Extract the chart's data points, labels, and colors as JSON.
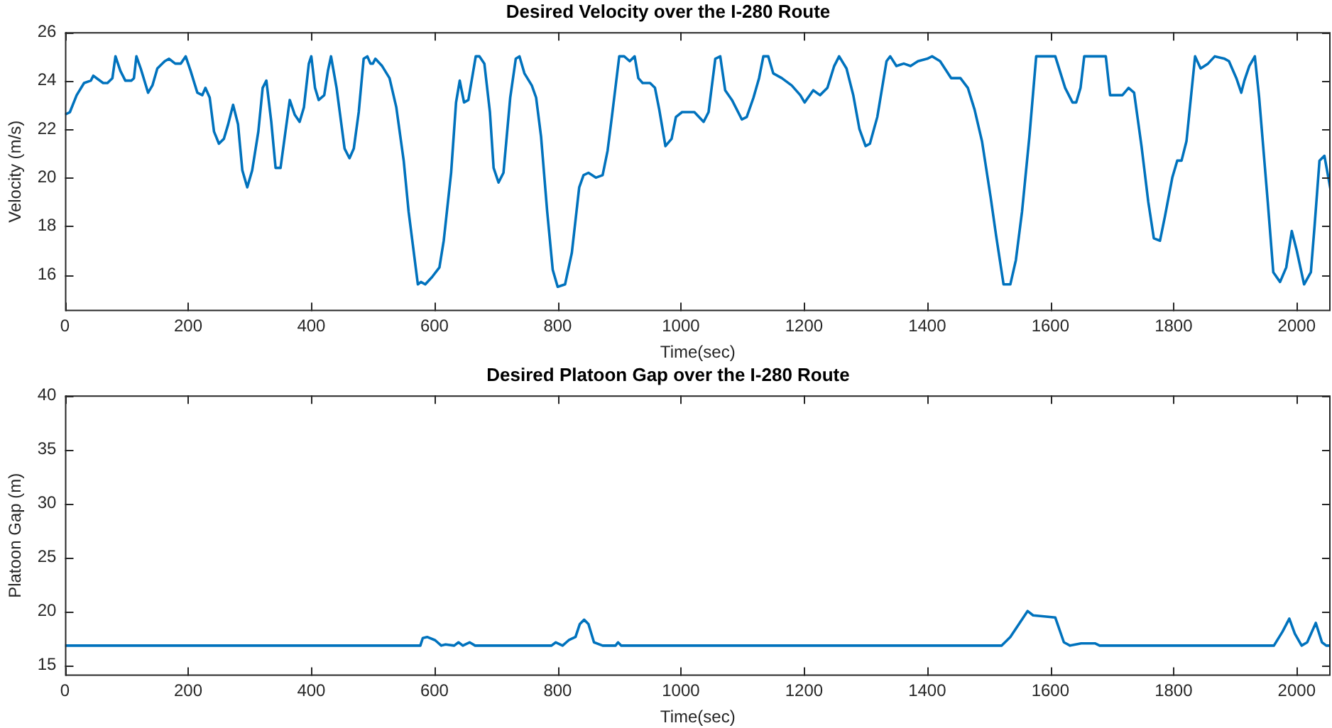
{
  "chart_data": [
    {
      "type": "line",
      "title": "Desired Velocity over the I-280 Route",
      "xlabel": "Time(sec)",
      "ylabel": "Velocity (m/s)",
      "x": [
        0,
        8,
        19,
        31,
        42,
        46,
        62,
        69,
        77,
        82,
        90,
        98,
        108,
        112,
        116,
        123,
        135,
        142,
        150,
        162,
        169,
        179,
        188,
        196,
        204,
        215,
        223,
        228,
        235,
        242,
        250,
        258,
        265,
        273,
        281,
        288,
        296,
        304,
        314,
        321,
        327,
        335,
        342,
        350,
        358,
        365,
        373,
        381,
        388,
        396,
        400,
        406,
        412,
        421,
        427,
        432,
        441,
        454,
        462,
        469,
        477,
        485,
        491,
        496,
        500,
        504,
        515,
        527,
        538,
        550,
        558,
        573,
        578,
        585,
        596,
        608,
        615,
        627,
        635,
        641,
        648,
        655,
        667,
        673,
        681,
        690,
        696,
        704,
        712,
        723,
        732,
        738,
        746,
        758,
        765,
        773,
        783,
        792,
        800,
        812,
        823,
        835,
        842,
        850,
        862,
        873,
        881,
        888,
        900,
        908,
        917,
        925,
        931,
        938,
        950,
        958,
        965,
        975,
        985,
        992,
        1002,
        1022,
        1037,
        1045,
        1056,
        1064,
        1072,
        1083,
        1099,
        1107,
        1118,
        1127,
        1134,
        1142,
        1150,
        1164,
        1180,
        1194,
        1201,
        1215,
        1226,
        1238,
        1249,
        1257,
        1269,
        1280,
        1290,
        1300,
        1307,
        1319,
        1334,
        1340,
        1350,
        1362,
        1373,
        1385,
        1400,
        1408,
        1421,
        1439,
        1454,
        1466,
        1477,
        1489,
        1503,
        1512,
        1524,
        1535,
        1544,
        1554,
        1566,
        1577,
        1608,
        1624,
        1636,
        1642,
        1649,
        1655,
        1686,
        1690,
        1697,
        1717,
        1727,
        1736,
        1748,
        1759,
        1768,
        1778,
        1786,
        1798,
        1806,
        1813,
        1821,
        1829,
        1835,
        1844,
        1856,
        1867,
        1883,
        1890,
        1902,
        1910,
        1915,
        1923,
        1932,
        1939,
        1953,
        1962,
        1973,
        1983,
        1992,
        2000,
        2012,
        2023,
        2029,
        2037,
        2045,
        2055
      ],
      "series": [
        {
          "color": "#0072bd",
          "values": [
            22.6,
            22.7,
            23.4,
            23.9,
            24.0,
            24.2,
            23.9,
            23.9,
            24.1,
            25.0,
            24.4,
            24.0,
            24.0,
            24.1,
            25.0,
            24.5,
            23.5,
            23.8,
            24.5,
            24.8,
            24.9,
            24.7,
            24.7,
            25.0,
            24.4,
            23.5,
            23.4,
            23.7,
            23.3,
            21.9,
            21.4,
            21.6,
            22.2,
            23.0,
            22.2,
            20.3,
            19.6,
            20.3,
            21.9,
            23.7,
            24.0,
            22.3,
            20.4,
            20.4,
            21.9,
            23.2,
            22.6,
            22.3,
            22.9,
            24.7,
            25.0,
            23.7,
            23.2,
            23.4,
            24.4,
            25.0,
            23.7,
            21.2,
            20.8,
            21.2,
            22.7,
            24.9,
            25.0,
            24.7,
            24.7,
            24.9,
            24.6,
            24.1,
            22.9,
            20.7,
            18.6,
            15.6,
            15.7,
            15.6,
            15.9,
            16.3,
            17.4,
            20.2,
            23.1,
            24.0,
            23.1,
            23.2,
            25.0,
            25.0,
            24.7,
            22.7,
            20.4,
            19.8,
            20.2,
            23.3,
            24.9,
            25.0,
            24.3,
            23.8,
            23.3,
            21.7,
            18.6,
            16.2,
            15.5,
            15.6,
            16.9,
            19.6,
            20.1,
            20.2,
            20.0,
            20.1,
            21.1,
            22.5,
            25.0,
            25.0,
            24.8,
            25.0,
            24.1,
            23.9,
            23.9,
            23.7,
            22.8,
            21.3,
            21.6,
            22.5,
            22.7,
            22.7,
            22.3,
            22.7,
            24.9,
            25.0,
            23.6,
            23.2,
            22.4,
            22.5,
            23.3,
            24.1,
            25.0,
            25.0,
            24.3,
            24.1,
            23.8,
            23.4,
            23.1,
            23.6,
            23.4,
            23.7,
            24.6,
            25.0,
            24.5,
            23.4,
            22.0,
            21.3,
            21.4,
            22.5,
            24.8,
            25.0,
            24.6,
            24.7,
            24.6,
            24.8,
            24.9,
            25.0,
            24.8,
            24.1,
            24.1,
            23.7,
            22.8,
            21.5,
            19.2,
            17.6,
            15.6,
            15.6,
            16.6,
            18.6,
            21.7,
            25.0,
            25.0,
            23.7,
            23.1,
            23.1,
            23.7,
            25.0,
            25.0,
            25.0,
            23.4,
            23.4,
            23.7,
            23.5,
            21.3,
            19.0,
            17.5,
            17.4,
            18.4,
            20.0,
            20.7,
            20.7,
            21.5,
            23.5,
            25.0,
            24.5,
            24.7,
            25.0,
            24.9,
            24.8,
            24.1,
            23.5,
            24.0,
            24.6,
            25.0,
            23.3,
            19.0,
            16.1,
            15.7,
            16.3,
            17.8,
            17.0,
            15.6,
            16.1,
            18.0,
            20.7,
            20.9,
            19.5
          ]
        }
      ],
      "xlim": [
        0,
        2055
      ],
      "xticks": [
        0,
        200,
        400,
        600,
        800,
        1000,
        1200,
        1400,
        1600,
        1800,
        2000
      ],
      "ylim": [
        14.5,
        26
      ],
      "yticks": [
        16,
        18,
        20,
        22,
        24,
        26
      ]
    },
    {
      "type": "line",
      "title": "Desired Platoon Gap over the I-280 Route",
      "xlabel": "Time(sec)",
      "ylabel": "Platoon Gap (m)",
      "x": [
        0,
        577,
        581,
        588,
        601,
        611,
        618,
        632,
        639,
        646,
        657,
        666,
        790,
        797,
        808,
        818,
        829,
        836,
        843,
        850,
        859,
        873,
        894,
        898,
        903,
        1521,
        1535,
        1549,
        1563,
        1572,
        1608,
        1622,
        1632,
        1650,
        1673,
        1680,
        1963,
        1977,
        1988,
        1997,
        2008,
        2017,
        2031,
        2041,
        2048,
        2055
      ],
      "series": [
        {
          "color": "#0072bd",
          "values": [
            16.8,
            16.8,
            17.5,
            17.6,
            17.3,
            16.8,
            16.9,
            16.8,
            17.1,
            16.8,
            17.1,
            16.8,
            16.8,
            17.1,
            16.8,
            17.3,
            17.6,
            18.8,
            19.2,
            18.8,
            17.1,
            16.8,
            16.8,
            17.1,
            16.8,
            16.8,
            17.6,
            18.8,
            20.0,
            19.6,
            19.4,
            17.1,
            16.8,
            17.0,
            17.0,
            16.8,
            16.8,
            18.1,
            19.3,
            17.9,
            16.8,
            17.1,
            18.9,
            17.1,
            16.8,
            16.8
          ]
        }
      ],
      "xlim": [
        0,
        2055
      ],
      "xticks": [
        0,
        200,
        400,
        600,
        800,
        1000,
        1200,
        1400,
        1600,
        1800,
        2000
      ],
      "ylim": [
        14,
        40
      ],
      "yticks": [
        15,
        20,
        25,
        30,
        35,
        40
      ]
    }
  ]
}
